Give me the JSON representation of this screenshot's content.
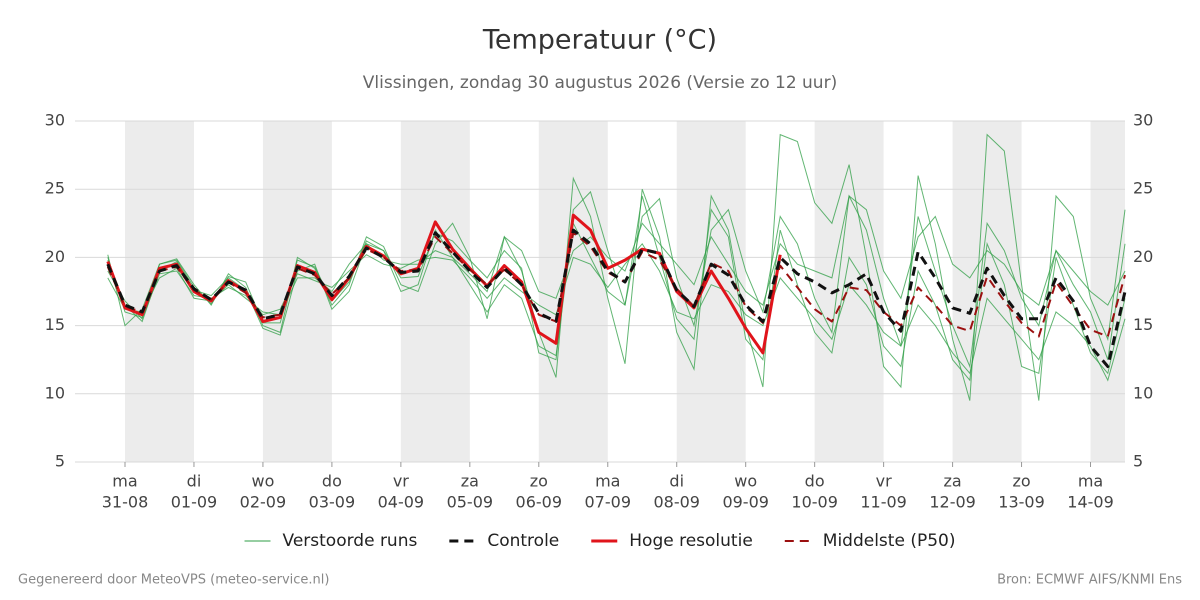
{
  "chart_data": {
    "type": "line",
    "title": "Temperatuur (°C)",
    "subtitle": "Vlissingen, zondag 30 augustus 2026 (Versie zo 12 uur)",
    "x": [
      -0.25,
      0,
      0.25,
      0.5,
      0.75,
      1,
      1.25,
      1.5,
      1.75,
      2,
      2.25,
      2.5,
      2.75,
      3,
      3.25,
      3.5,
      3.75,
      4,
      4.25,
      4.5,
      4.75,
      5,
      5.25,
      5.5,
      5.75,
      6,
      6.25,
      6.5,
      6.75,
      7,
      7.25,
      7.5,
      7.75,
      8,
      8.25,
      8.5,
      8.75,
      9,
      9.25,
      9.5,
      9.75,
      10,
      10.25,
      10.5,
      10.75,
      11,
      11.25,
      11.5,
      11.75,
      12,
      12.25,
      12.5,
      12.75,
      13,
      13.25,
      13.5,
      13.75,
      14,
      14.25,
      14.5
    ],
    "xlim": [
      -0.725,
      14.5
    ],
    "xticks": [
      {
        "value": 0,
        "label": "31-08"
      },
      {
        "value": 1,
        "label": "01-09"
      },
      {
        "value": 2,
        "label": "02-09"
      },
      {
        "value": 3,
        "label": "03-09"
      },
      {
        "value": 4,
        "label": "04-09"
      },
      {
        "value": 5,
        "label": "05-09"
      },
      {
        "value": 6,
        "label": "06-09"
      },
      {
        "value": 7,
        "label": "07-09"
      },
      {
        "value": 8,
        "label": "08-09"
      },
      {
        "value": 9,
        "label": "09-09"
      },
      {
        "value": 10,
        "label": "10-09"
      },
      {
        "value": 11,
        "label": "11-09"
      },
      {
        "value": 12,
        "label": "12-09"
      },
      {
        "value": 13,
        "label": "13-09"
      },
      {
        "value": 14,
        "label": "14-09"
      }
    ],
    "xtick_weekdays": [
      "ma",
      "di",
      "wo",
      "do",
      "vr",
      "za",
      "zo",
      "ma",
      "di",
      "wo",
      "do",
      "vr",
      "za",
      "zo",
      "ma"
    ],
    "ylim": [
      5,
      30
    ],
    "yticks": [
      5,
      10,
      15,
      20,
      25,
      30
    ],
    "grid": true,
    "ensemble": {
      "name": "Verstoorde runs",
      "color": "#2e9e44",
      "members": [
        [
          20.2,
          15.0,
          16.2,
          19.5,
          19.9,
          18.0,
          16.5,
          18.8,
          17.8,
          15.0,
          14.5,
          20.0,
          19.2,
          16.5,
          18.0,
          21.5,
          20.8,
          18.0,
          17.5,
          21.0,
          22.5,
          20.0,
          15.5,
          21.5,
          19.0,
          14.5,
          11.2,
          25.8,
          23.0,
          17.0,
          12.2,
          25.0,
          21.5,
          14.5,
          11.8,
          24.5,
          22.0,
          15.0,
          10.5,
          29.0,
          28.5,
          24.0,
          22.5,
          26.8,
          20.0,
          12.0,
          10.5,
          26.0,
          21.0,
          14.0,
          9.5,
          29.0,
          27.8,
          18.0,
          9.5,
          24.5,
          23.0,
          17.0,
          14.0,
          23.5
        ],
        [
          19.0,
          16.8,
          15.5,
          18.8,
          19.0,
          17.2,
          17.0,
          17.8,
          17.2,
          15.8,
          16.2,
          18.8,
          18.3,
          17.8,
          19.0,
          20.2,
          19.5,
          19.2,
          19.8,
          20.0,
          19.8,
          18.5,
          17.0,
          18.5,
          17.5,
          16.5,
          15.8,
          20.0,
          19.5,
          17.8,
          19.5,
          21.0,
          19.0,
          16.0,
          15.5,
          18.0,
          17.5,
          15.8,
          15.0,
          18.5,
          17.0,
          15.5,
          14.0,
          18.0,
          16.5,
          14.5,
          13.5,
          16.5,
          15.0,
          13.0,
          11.5,
          17.0,
          15.5,
          14.0,
          12.5,
          16.0,
          15.0,
          13.5,
          11.0,
          15.5
        ],
        [
          20.0,
          16.0,
          15.6,
          19.5,
          19.8,
          17.8,
          16.6,
          18.6,
          18.2,
          15.2,
          15.2,
          19.8,
          19.3,
          16.8,
          18.2,
          21.2,
          20.5,
          18.5,
          18.6,
          21.8,
          21.2,
          19.8,
          18.5,
          20.5,
          19.2,
          13.0,
          12.5,
          23.5,
          24.8,
          20.5,
          16.5,
          23.0,
          24.3,
          18.5,
          15.0,
          22.0,
          23.5,
          19.0,
          16.0,
          23.0,
          21.0,
          17.0,
          14.5,
          24.5,
          22.0,
          17.0,
          13.5,
          23.0,
          19.0,
          15.0,
          12.0,
          22.5,
          20.5,
          17.0,
          15.0,
          20.5,
          18.0,
          16.0,
          12.5,
          21.0
        ],
        [
          18.5,
          16.2,
          16.0,
          18.5,
          19.2,
          17.0,
          16.8,
          18.0,
          17.0,
          16.0,
          15.8,
          18.5,
          18.5,
          17.5,
          19.5,
          21.0,
          19.8,
          19.5,
          19.5,
          20.5,
          20.0,
          18.8,
          17.5,
          21.5,
          20.5,
          17.5,
          17.0,
          20.5,
          21.5,
          20.0,
          19.0,
          22.5,
          21.0,
          19.5,
          18.0,
          21.5,
          19.5,
          17.5,
          16.5,
          21.0,
          19.5,
          19.0,
          18.5,
          24.5,
          23.5,
          19.0,
          17.0,
          21.5,
          23.0,
          19.5,
          18.5,
          20.5,
          19.5,
          17.5,
          16.5,
          20.5,
          19.0,
          17.5,
          16.5,
          19.0
        ],
        [
          19.8,
          16.5,
          15.3,
          19.0,
          19.7,
          17.6,
          17.2,
          18.5,
          17.6,
          14.8,
          14.3,
          19.0,
          19.5,
          16.2,
          17.5,
          21.0,
          20.5,
          17.5,
          18.0,
          22.0,
          20.0,
          18.0,
          16.0,
          18.0,
          17.0,
          13.5,
          12.8,
          22.5,
          20.0,
          17.5,
          16.5,
          24.5,
          20.0,
          15.5,
          14.0,
          23.5,
          21.5,
          14.0,
          12.5,
          22.0,
          18.0,
          14.5,
          13.0,
          20.0,
          18.0,
          13.5,
          12.0,
          19.0,
          16.5,
          12.5,
          11.0,
          21.0,
          18.0,
          12.0,
          11.5,
          20.0,
          16.5,
          13.0,
          11.5,
          17.0
        ]
      ]
    },
    "series": [
      {
        "name": "Controle",
        "color": "#111111",
        "dash": true,
        "width": 3,
        "values": [
          19.5,
          16.5,
          16.0,
          19.0,
          19.4,
          17.7,
          16.9,
          18.2,
          17.6,
          15.5,
          15.8,
          19.3,
          18.8,
          17.2,
          18.6,
          20.7,
          20.0,
          18.9,
          19.0,
          21.8,
          20.4,
          19.0,
          17.8,
          19.2,
          18.0,
          15.9,
          15.3,
          22.0,
          21.0,
          19.0,
          18.2,
          20.6,
          20.3,
          17.6,
          16.4,
          19.5,
          18.7,
          16.5,
          15.3,
          20.0,
          18.8,
          18.2,
          17.4,
          18.0,
          18.8,
          16.0,
          14.6,
          20.4,
          18.5,
          16.3,
          15.9,
          19.2,
          17.2,
          15.5,
          15.5,
          18.5,
          16.8,
          13.5,
          12.0,
          17.5
        ]
      },
      {
        "name": "Hoge resolutie",
        "color": "#e0141b",
        "dash": false,
        "width": 3,
        "values": [
          19.7,
          16.3,
          15.8,
          19.2,
          19.5,
          17.5,
          16.8,
          18.3,
          17.5,
          15.3,
          15.6,
          19.4,
          18.9,
          16.9,
          18.5,
          20.8,
          20.1,
          18.8,
          19.2,
          22.6,
          20.6,
          19.2,
          17.9,
          19.4,
          18.2,
          14.5,
          13.7,
          23.1,
          22.0,
          19.2,
          19.8,
          20.6,
          20.3,
          17.5,
          16.3,
          19.0,
          17.0,
          14.8,
          13.0,
          20.2,
          null,
          null,
          null,
          null,
          null,
          null,
          null,
          null,
          null,
          null,
          null,
          null,
          null,
          null,
          null,
          null,
          null,
          null,
          null,
          null
        ]
      },
      {
        "name": "Middelste (P50)",
        "color": "#9b1010",
        "dash": true,
        "width": 2,
        "values": [
          19.3,
          16.4,
          16.0,
          19.0,
          19.3,
          17.6,
          16.9,
          18.2,
          17.4,
          15.6,
          15.8,
          19.2,
          18.7,
          17.3,
          18.5,
          20.6,
          20.0,
          19.0,
          19.1,
          21.5,
          20.3,
          19.1,
          18.0,
          19.1,
          18.0,
          15.8,
          15.3,
          21.8,
          20.8,
          18.9,
          18.2,
          20.4,
          19.8,
          17.7,
          16.4,
          19.6,
          19.0,
          16.4,
          15.2,
          19.4,
          17.8,
          16.2,
          15.3,
          17.8,
          17.6,
          16.0,
          15.0,
          17.8,
          16.5,
          15.0,
          14.6,
          18.6,
          16.8,
          15.2,
          14.2,
          18.2,
          16.4,
          14.7,
          14.2,
          18.7
        ]
      }
    ],
    "draw_order": [
      1,
      2,
      0
    ]
  },
  "footer": {
    "left": "Gegenereerd door MeteoVPS (meteo-service.nl)",
    "right": "Bron: ECMWF AIFS/KNMI Ens"
  }
}
